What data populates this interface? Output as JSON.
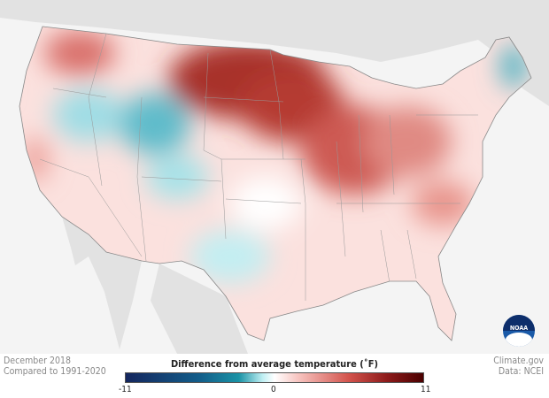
{
  "caption": {
    "date": "December 2018",
    "baseline": "Compared to 1991-2020"
  },
  "credit": {
    "site": "Climate.gov",
    "source": "Data: NCEI"
  },
  "legend": {
    "title": "Difference from average temperature  (˚F)",
    "min": "-11",
    "mid": "0",
    "max": "11"
  },
  "logo": {
    "text": "NOAA"
  },
  "colors": {
    "cold": "#14265e",
    "cool": "#1a93a6",
    "neutral": "#ffffff",
    "warm": "#d3534c",
    "hot": "#4a0000",
    "land": "#e2e2e2",
    "ocean": "#f4f4f4"
  }
}
